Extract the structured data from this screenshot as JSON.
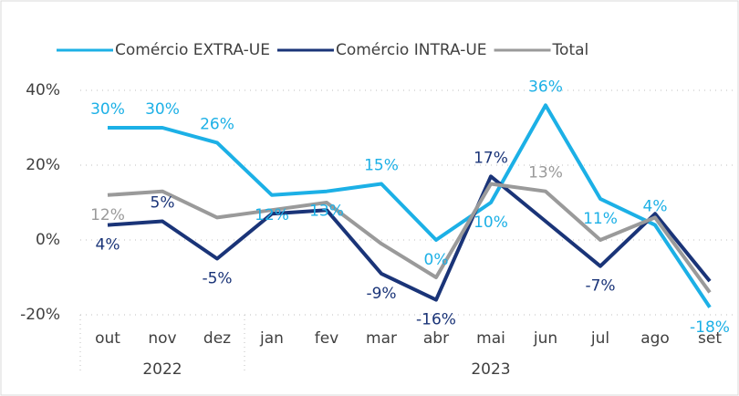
{
  "chart_data": {
    "type": "line",
    "categories": [
      "out",
      "nov",
      "dez",
      "jan",
      "fev",
      "mar",
      "abr",
      "mai",
      "jun",
      "jul",
      "ago",
      "set"
    ],
    "groups": [
      {
        "label": "2022",
        "span": 3
      },
      {
        "label": "2023",
        "span": 9
      }
    ],
    "series": [
      {
        "name": "Comércio EXTRA-UE",
        "color": "#1cb0e6",
        "values": [
          30,
          30,
          26,
          12,
          13,
          15,
          0,
          10,
          36,
          11,
          4,
          -18
        ],
        "value_labels": [
          "30%",
          "30%",
          "26%",
          "12%",
          "13%",
          "15%",
          "0%",
          "10%",
          "36%",
          "11%",
          "4%",
          "-18%"
        ]
      },
      {
        "name": "Comércio INTRA-UE",
        "color": "#1a3478",
        "values": [
          4,
          5,
          -5,
          7,
          8,
          -9,
          -16,
          17,
          5,
          -7,
          7,
          -11
        ],
        "value_labels": [
          "4%",
          "5%",
          "-5%",
          null,
          null,
          "-9%",
          "-16%",
          "17%",
          null,
          "-7%",
          null,
          null
        ]
      },
      {
        "name": "Total",
        "color": "#9a9a9a",
        "values": [
          12,
          13,
          6,
          8,
          10,
          -1,
          -10,
          15,
          13,
          0,
          6,
          -14
        ],
        "value_labels": [
          "12%",
          null,
          null,
          null,
          null,
          null,
          null,
          null,
          "13%",
          null,
          null,
          null
        ]
      }
    ],
    "ylim": [
      -20,
      40
    ],
    "yticks": [
      {
        "value": -20,
        "label": "-20%"
      },
      {
        "value": 0,
        "label": "0%"
      },
      {
        "value": 20,
        "label": "20%"
      },
      {
        "value": 40,
        "label": "40%"
      }
    ],
    "grid": true,
    "legend": "top"
  }
}
